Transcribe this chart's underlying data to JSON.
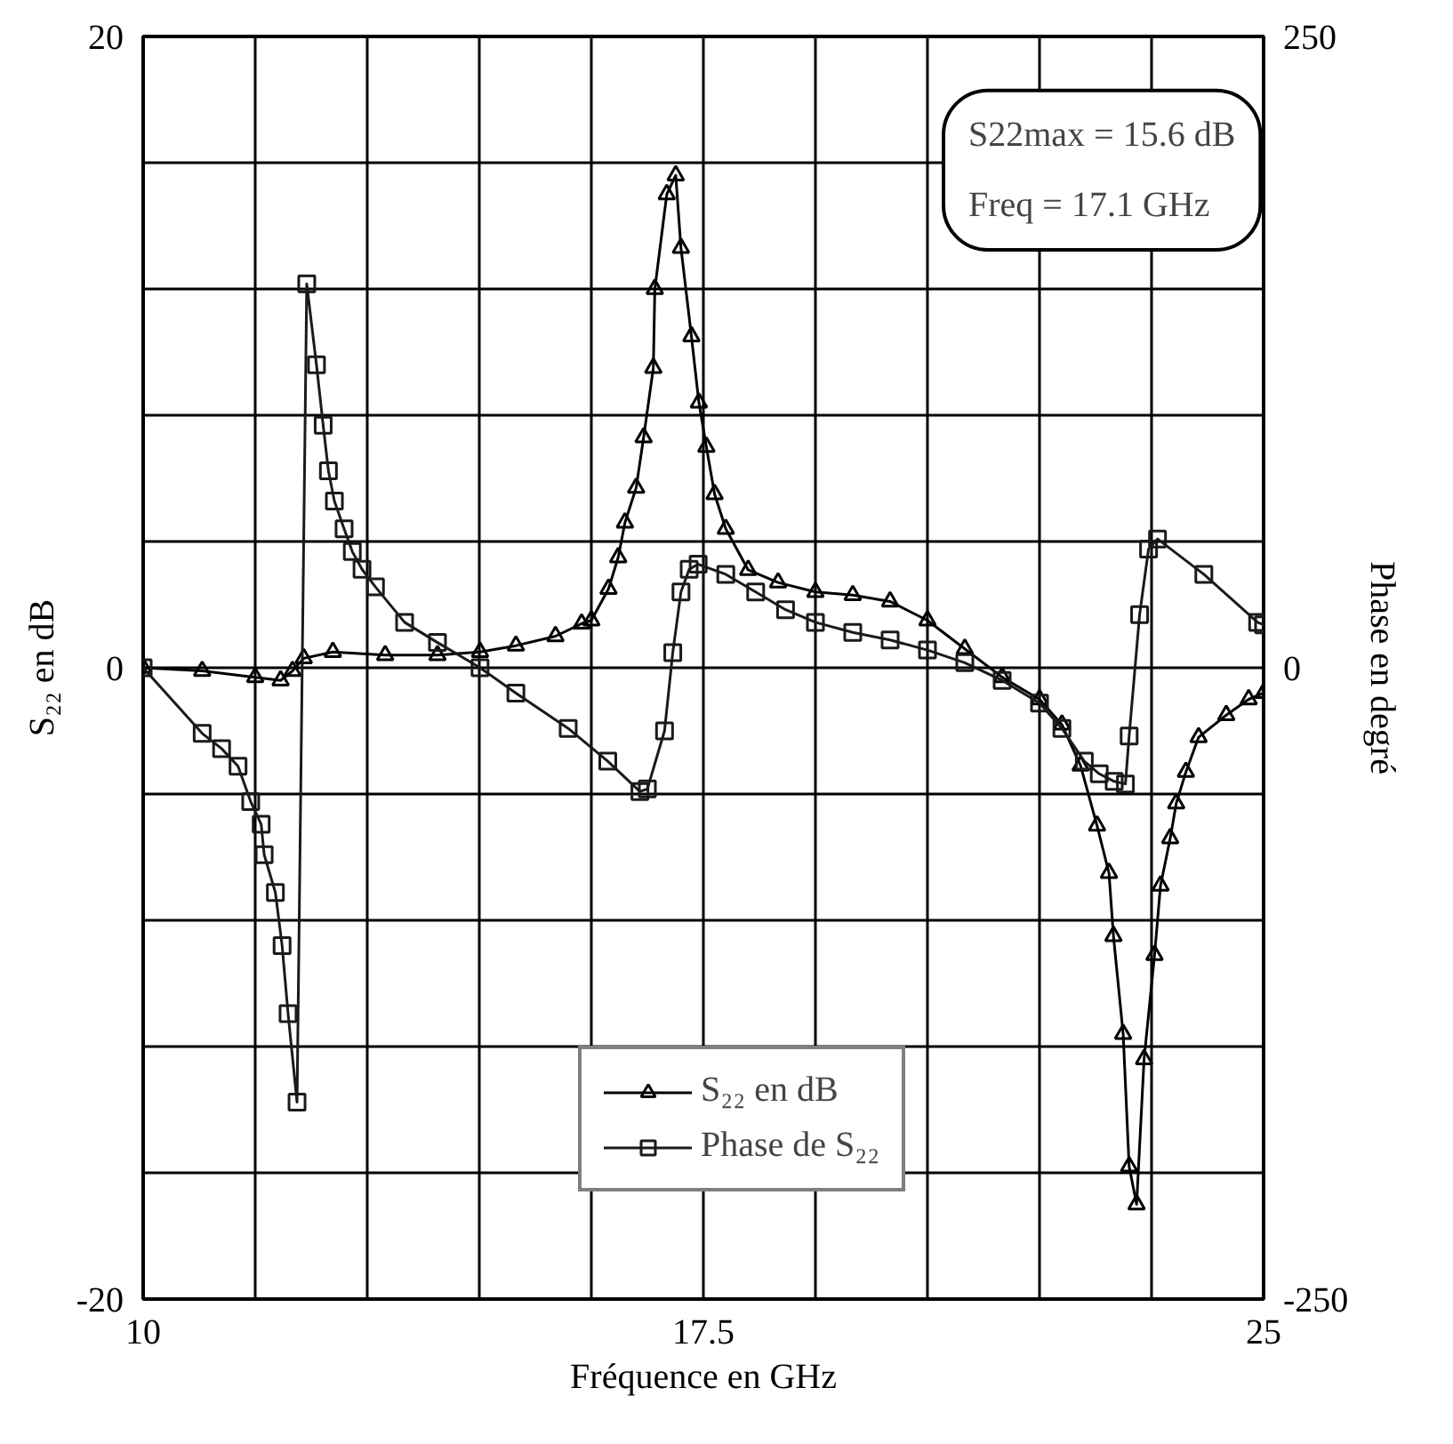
{
  "chart_data": {
    "type": "line",
    "xlabel": "Fréquence en GHz",
    "ylabel": "S₂₂ en dB",
    "y2label": "Phase en degré",
    "annotations": [
      "S22max = 15.6 dB",
      "Freq = 17.1 GHz"
    ],
    "xlim": [
      10,
      25
    ],
    "ylim": [
      -20,
      20
    ],
    "y2lim": [
      -250,
      250
    ],
    "xticks": [
      10,
      {
        "value": 11.5,
        "label": null
      },
      {
        "value": 13,
        "label": null
      },
      {
        "value": 14.5,
        "label": null
      },
      {
        "value": 16,
        "label": null
      },
      17.5,
      {
        "value": 19,
        "label": null
      },
      {
        "value": 20.5,
        "label": null
      },
      {
        "value": 22,
        "label": null
      },
      {
        "value": 23.5,
        "label": null
      },
      25
    ],
    "yticks": [
      -20,
      {
        "value": -16,
        "label": null
      },
      {
        "value": -12,
        "label": null
      },
      {
        "value": -8,
        "label": null
      },
      {
        "value": -4,
        "label": null
      },
      0,
      {
        "value": 4,
        "label": null
      },
      {
        "value": 8,
        "label": null
      },
      {
        "value": 12,
        "label": null
      },
      {
        "value": 16,
        "label": null
      },
      20
    ],
    "y2ticks": [
      -250,
      0,
      250
    ],
    "grid": true,
    "legend": "bottom",
    "line_style": "solid",
    "series": [
      {
        "name": "S₂₂ en dB",
        "color": "#000000",
        "marker": "triangle",
        "x": [
          10,
          10.79,
          11.5,
          11.84,
          12.0,
          12.15,
          12.54,
          13.24,
          13.94,
          14.51,
          14.99,
          15.52,
          15.87,
          16.0,
          16.23,
          16.36,
          16.45,
          16.6,
          16.7,
          16.83,
          16.85,
          17.01,
          17.13,
          17.2,
          17.34,
          17.44,
          17.54,
          17.65,
          17.8,
          18.1,
          18.5,
          19.0,
          19.5,
          20.0,
          20.5,
          21.0,
          21.5,
          22.0,
          22.3,
          22.55,
          22.77,
          22.93,
          22.99,
          23.12,
          23.2,
          23.3,
          23.4,
          23.54,
          23.62,
          23.75,
          23.83,
          23.96,
          24.13,
          24.5,
          24.8,
          25
        ],
        "values": [
          0,
          -0.1,
          -0.3,
          -0.4,
          -0.1,
          0.3,
          0.5,
          0.4,
          0.4,
          0.5,
          0.7,
          1.0,
          1.4,
          1.5,
          2.5,
          3.5,
          4.6,
          5.7,
          7.3,
          9.5,
          12.0,
          15.0,
          15.6,
          13.3,
          10.5,
          8.4,
          7.0,
          5.5,
          4.4,
          3.1,
          2.7,
          2.4,
          2.3,
          2.1,
          1.5,
          0.6,
          -0.3,
          -1.0,
          -1.8,
          -3.1,
          -5.0,
          -6.5,
          -8.5,
          -11.6,
          -15.8,
          -17.0,
          -12.4,
          -9.1,
          -6.9,
          -5.4,
          -4.3,
          -3.3,
          -2.2,
          -1.5,
          -1.0,
          -0.8
        ]
      },
      {
        "name": "Phase de S₂₂",
        "color": "#1a1a1a",
        "marker": "square",
        "axis": "y2",
        "x": [
          10,
          10.79,
          11.05,
          11.27,
          11.44,
          11.58,
          11.62,
          11.77,
          11.86,
          11.94,
          12.06,
          12.19,
          12.32,
          12.41,
          12.48,
          12.56,
          12.69,
          12.8,
          12.93,
          13.11,
          13.5,
          13.94,
          14.51,
          14.99,
          15.69,
          16.22,
          16.65,
          16.75,
          16.98,
          17.09,
          17.2,
          17.31,
          17.43,
          17.8,
          18.2,
          18.6,
          19.0,
          19.5,
          20.0,
          20.5,
          21.0,
          21.5,
          22.0,
          22.3,
          22.6,
          22.8,
          23.0,
          23.15,
          23.2,
          23.34,
          23.46,
          23.58,
          24.2,
          24.92,
          25
        ],
        "values": [
          0,
          -26,
          -32,
          -39,
          -53,
          -62,
          -74,
          -89,
          -110,
          -137,
          -172,
          152,
          120,
          96,
          78,
          66,
          55,
          46,
          39,
          32,
          18,
          10,
          0,
          -10,
          -24,
          -37,
          -49,
          -48,
          -25,
          6,
          30,
          39,
          41,
          37,
          30,
          23,
          18,
          14,
          11,
          7,
          2,
          -5,
          -14,
          -24,
          -37,
          -42,
          -45,
          -46,
          -27,
          21,
          47,
          51,
          37,
          18,
          17
        ]
      }
    ]
  }
}
